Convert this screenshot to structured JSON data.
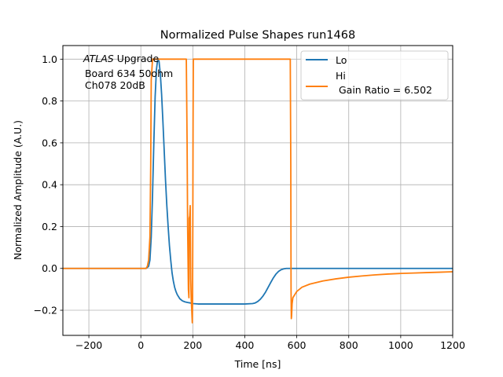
{
  "chart_data": {
    "type": "line",
    "title": "Normalized Pulse Shapes run1468",
    "xlabel": "Time [ns]",
    "ylabel": "Normalized Amplitude (A.U.)",
    "xlim": [
      -300,
      1200
    ],
    "ylim": [
      -0.32,
      1.065
    ],
    "xticks": [
      -200,
      0,
      200,
      400,
      600,
      800,
      1000,
      1200
    ],
    "xtick_labels": [
      "−200",
      "0",
      "200",
      "400",
      "600",
      "800",
      "1000",
      "1200"
    ],
    "yticks": [
      -0.2,
      0.0,
      0.2,
      0.4,
      0.6,
      0.8,
      1.0
    ],
    "ytick_labels": [
      "−0.2",
      "0.0",
      "0.2",
      "0.4",
      "0.6",
      "0.8",
      "1.0"
    ],
    "grid": true,
    "legend_position": "top-right",
    "annotation": {
      "italic": "ATLAS",
      "line1_rest": " Upgrade",
      "line2": " Board 634 50ohm",
      "line3": " Ch078 20dB"
    },
    "series": [
      {
        "name": "Lo",
        "legend_label": "Lo",
        "color": "#1f77b4",
        "x": [
          -300,
          0,
          20,
          30,
          35,
          40,
          45,
          50,
          55,
          60,
          65,
          70,
          75,
          80,
          85,
          90,
          95,
          100,
          105,
          110,
          115,
          120,
          125,
          130,
          135,
          140,
          150,
          160,
          170,
          180,
          190,
          200,
          220,
          250,
          300,
          350,
          400,
          430,
          440,
          450,
          460,
          470,
          480,
          490,
          500,
          510,
          520,
          530,
          540,
          550,
          560,
          580,
          600,
          800,
          1000,
          1200
        ],
        "y": [
          0,
          0,
          0,
          0.01,
          0.04,
          0.15,
          0.35,
          0.6,
          0.82,
          0.95,
          1.0,
          0.99,
          0.93,
          0.83,
          0.7,
          0.56,
          0.42,
          0.3,
          0.2,
          0.11,
          0.04,
          -0.02,
          -0.06,
          -0.09,
          -0.11,
          -0.125,
          -0.145,
          -0.155,
          -0.16,
          -0.163,
          -0.165,
          -0.168,
          -0.17,
          -0.17,
          -0.17,
          -0.17,
          -0.17,
          -0.168,
          -0.165,
          -0.158,
          -0.147,
          -0.132,
          -0.113,
          -0.09,
          -0.067,
          -0.045,
          -0.027,
          -0.014,
          -0.006,
          -0.002,
          0,
          0,
          0,
          0,
          0,
          0
        ]
      },
      {
        "name": "Hi",
        "legend_label": "Hi",
        "legend_sub": " Gain Ratio = 6.502",
        "color": "#ff7f0e",
        "x": [
          -300,
          0,
          20,
          25,
          30,
          35,
          38,
          40,
          45,
          170,
          175,
          178,
          180,
          183,
          185,
          186,
          188,
          190,
          192,
          194,
          196,
          198,
          199,
          200,
          201,
          202,
          203,
          204,
          205,
          575,
          577,
          578,
          579,
          580,
          582,
          585,
          590,
          600,
          620,
          650,
          700,
          750,
          800,
          850,
          900,
          950,
          1000,
          1050,
          1100,
          1150,
          1200
        ],
        "y": [
          0,
          0,
          0,
          0.01,
          0.04,
          0.15,
          0.5,
          0.9,
          1.0,
          1.0,
          1.0,
          0.6,
          0.2,
          -0.1,
          -0.14,
          0.24,
          0.25,
          0.3,
          -0.05,
          -0.15,
          -0.2,
          -0.26,
          -0.15,
          0.2,
          0.7,
          1.0,
          1.0,
          1.0,
          1.0,
          1.0,
          0.5,
          -0.1,
          -0.24,
          -0.23,
          -0.17,
          -0.14,
          -0.13,
          -0.11,
          -0.09,
          -0.075,
          -0.06,
          -0.05,
          -0.042,
          -0.036,
          -0.031,
          -0.027,
          -0.024,
          -0.022,
          -0.02,
          -0.018,
          -0.016
        ]
      }
    ]
  }
}
